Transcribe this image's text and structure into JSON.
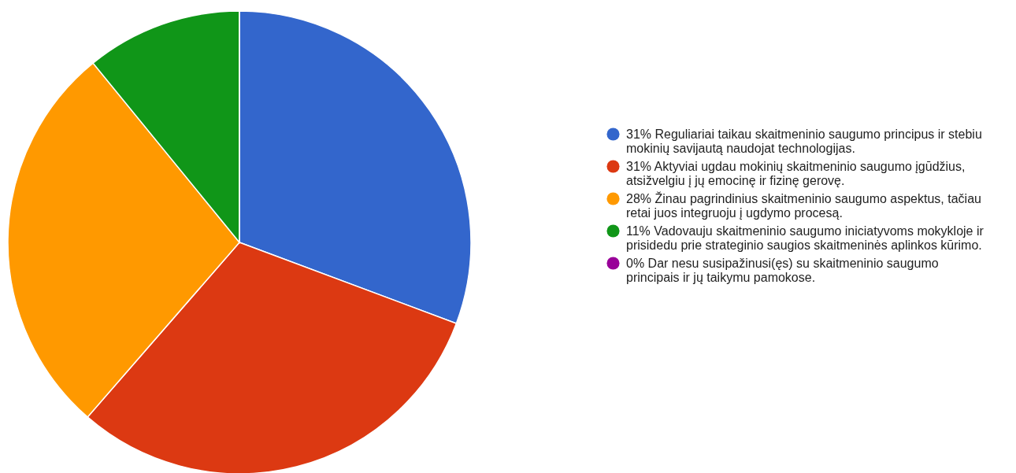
{
  "chart_data": {
    "type": "pie",
    "categories": [
      "31% Reguliariai taikau skaitmeninio saugumo principus ir stebiu mokinių savijautą naudojat technologijas.",
      "31% Aktyviai ugdau mokinių skaitmeninio saugumo įgūdžius, atsižvelgiu į jų emocinę ir fizinę gerovę.",
      "28% Žinau pagrindinius skaitmeninio saugumo aspektus, tačiau retai juos integruoju į ugdymo procesą.",
      "11% Vadovauju skaitmeninio saugumo iniciatyvoms mokykloje ir prisidedu prie strateginio saugios skaitmeninės aplinkos kūrimo.",
      "0% Dar nesu susipažinusi(ęs) su skaitmeninio saugumo principais ir jų taikymu pamokose."
    ],
    "values": [
      31,
      31,
      28,
      11,
      0
    ],
    "colors": [
      "#3366cc",
      "#dc3912",
      "#ff9900",
      "#109618",
      "#990099"
    ],
    "legend": "right"
  }
}
